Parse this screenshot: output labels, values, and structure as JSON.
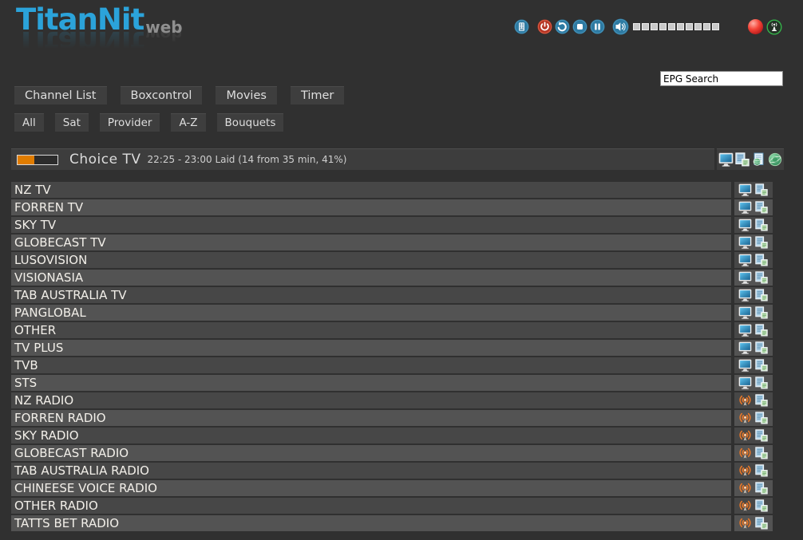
{
  "logo": {
    "title": "TitanNit",
    "suffix": "web"
  },
  "toolbar": {
    "icons": [
      "remote-keypad",
      "power",
      "restart",
      "stop",
      "pause",
      "volume-speaker",
      "record-status",
      "signal-antenna"
    ],
    "volume_segments": 10
  },
  "search": {
    "value": "EPG Search"
  },
  "nav": {
    "items": [
      "Channel List",
      "Boxcontrol",
      "Movies",
      "Timer"
    ]
  },
  "filters": {
    "items": [
      "All",
      "Sat",
      "Provider",
      "A-Z",
      "Bouquets"
    ]
  },
  "now_playing": {
    "channel": "Choice TV",
    "epg_info": "22:25 - 23:00 Laid (14 from 35 min, 41%)",
    "progress_percent": 41,
    "action_icons": [
      "monitor",
      "copy-pages",
      "epg-document",
      "globe"
    ]
  },
  "channel_row_icons": {
    "tv": "monitor",
    "radio": "broadcast",
    "common": "copy-pages"
  },
  "channels": [
    {
      "name": "NZ TV",
      "type": "tv"
    },
    {
      "name": "FORREN TV",
      "type": "tv"
    },
    {
      "name": "SKY TV",
      "type": "tv"
    },
    {
      "name": "GLOBECAST TV",
      "type": "tv"
    },
    {
      "name": "LUSOVISION",
      "type": "tv"
    },
    {
      "name": "VISIONASIA",
      "type": "tv"
    },
    {
      "name": "TAB AUSTRALIA TV",
      "type": "tv"
    },
    {
      "name": "PANGLOBAL",
      "type": "tv"
    },
    {
      "name": "OTHER",
      "type": "tv"
    },
    {
      "name": "TV PLUS",
      "type": "tv"
    },
    {
      "name": "TVB",
      "type": "tv"
    },
    {
      "name": "STS",
      "type": "tv"
    },
    {
      "name": "NZ RADIO",
      "type": "radio"
    },
    {
      "name": "FORREN RADIO",
      "type": "radio"
    },
    {
      "name": "SKY RADIO",
      "type": "radio"
    },
    {
      "name": "GLOBECAST RADIO",
      "type": "radio"
    },
    {
      "name": "TAB AUSTRALIA RADIO",
      "type": "radio"
    },
    {
      "name": "CHINEESE VOICE RADIO",
      "type": "radio"
    },
    {
      "name": "OTHER RADIO",
      "type": "radio"
    },
    {
      "name": "TATTS BET RADIO",
      "type": "radio"
    }
  ],
  "colors": {
    "background": "#303030",
    "logo_blue": "#2ba3da",
    "button_bg": "#3e3e3e",
    "bar_bg": "#3d3d3d",
    "row_dark": "#474747",
    "row_light": "#535353",
    "progress_orange": "#e07c00",
    "radio_orange": "#e2762a",
    "toolbar_blue": "#2e7ba3",
    "power_red": "#b63524"
  }
}
